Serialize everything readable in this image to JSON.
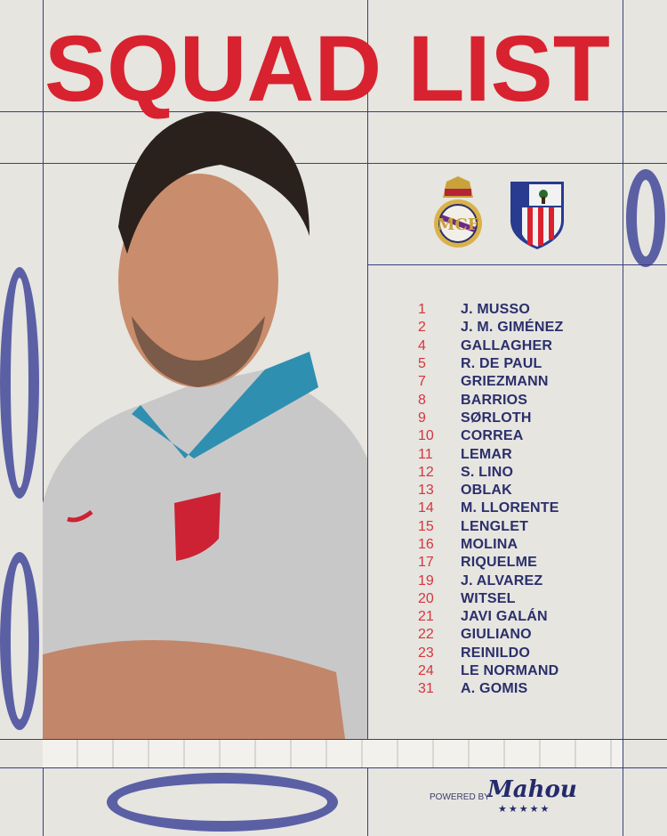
{
  "title": "SQUAD LIST",
  "crests": {
    "home": "Real Madrid crest",
    "away": "Atlético de Madrid crest"
  },
  "squad": [
    {
      "number": "1",
      "name": "J. MUSSO"
    },
    {
      "number": "2",
      "name": "J. M. GIMÉNEZ"
    },
    {
      "number": "4",
      "name": "GALLAGHER"
    },
    {
      "number": "5",
      "name": "R. DE PAUL"
    },
    {
      "number": "7",
      "name": "GRIEZMANN"
    },
    {
      "number": "8",
      "name": "BARRIOS"
    },
    {
      "number": "9",
      "name": "SØRLOTH"
    },
    {
      "number": "10",
      "name": "CORREA"
    },
    {
      "number": "11",
      "name": "LEMAR"
    },
    {
      "number": "12",
      "name": "S. LINO"
    },
    {
      "number": "13",
      "name": "OBLAK"
    },
    {
      "number": "14",
      "name": "M. LLORENTE"
    },
    {
      "number": "15",
      "name": "LENGLET"
    },
    {
      "number": "16",
      "name": "MOLINA"
    },
    {
      "number": "17",
      "name": "RIQUELME"
    },
    {
      "number": "19",
      "name": "J. ALVAREZ"
    },
    {
      "number": "20",
      "name": "WITSEL"
    },
    {
      "number": "21",
      "name": "JAVI GALÁN"
    },
    {
      "number": "22",
      "name": "GIULIANO"
    },
    {
      "number": "23",
      "name": "REINILDO"
    },
    {
      "number": "24",
      "name": "LE NORMAND"
    },
    {
      "number": "31",
      "name": "A. GOMIS"
    }
  ],
  "sponsor": {
    "powered_by": "POWERED BY",
    "brand": "Mahou",
    "stars": "★★★★★"
  },
  "colors": {
    "title": "#d8222f",
    "names": "#2b2f6b",
    "numbers": "#d8343c",
    "background": "#e6e5e0"
  }
}
